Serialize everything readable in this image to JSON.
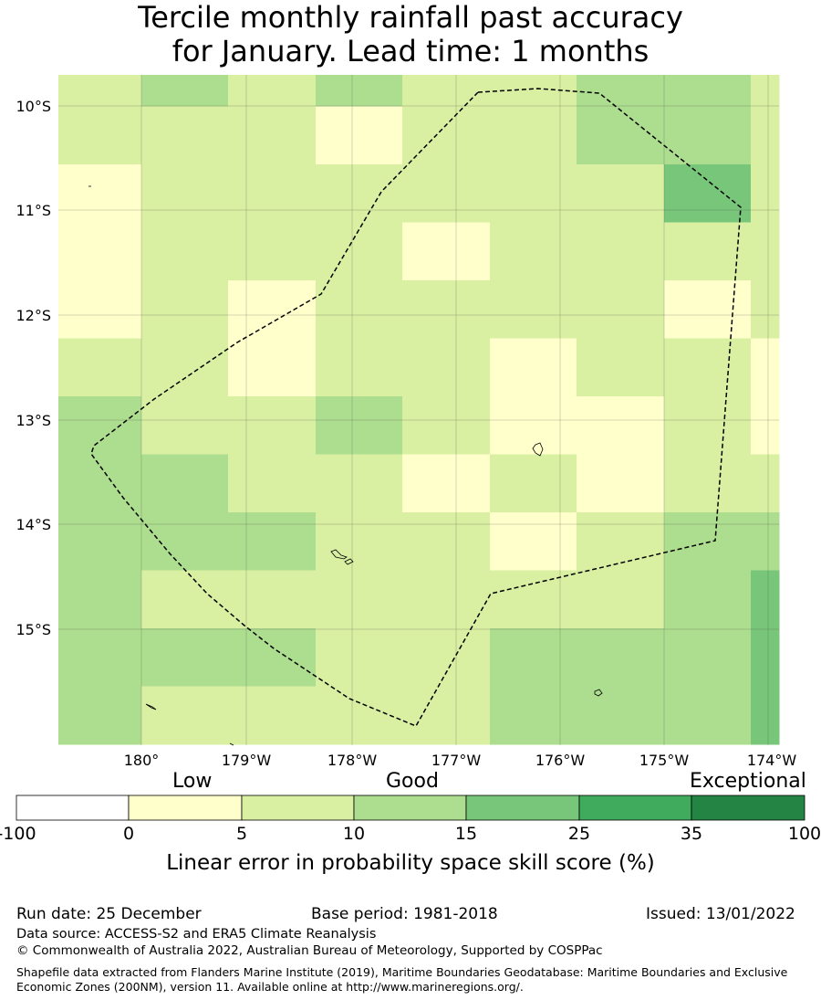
{
  "title": {
    "line1": "Tercile monthly rainfall past accuracy",
    "line2": "for January. Lead time: 1 months"
  },
  "map": {
    "lat_labels": [
      "10°S",
      "11°S",
      "12°S",
      "13°S",
      "14°S",
      "15°S"
    ],
    "lon_labels": [
      "180°",
      "179°W",
      "178°W",
      "177°W",
      "176°W",
      "175°W",
      "174°W"
    ],
    "cell_classes": [
      [
        2,
        3,
        2,
        3,
        2,
        2,
        3,
        3,
        2
      ],
      [
        2,
        2,
        2,
        1,
        2,
        2,
        3,
        3,
        2
      ],
      [
        1,
        2,
        2,
        2,
        2,
        2,
        2,
        4,
        2
      ],
      [
        1,
        2,
        2,
        2,
        1,
        2,
        2,
        2,
        2
      ],
      [
        1,
        2,
        1,
        2,
        2,
        2,
        2,
        1,
        2
      ],
      [
        2,
        2,
        1,
        2,
        2,
        1,
        2,
        2,
        1
      ],
      [
        3,
        2,
        2,
        3,
        2,
        1,
        1,
        2,
        1
      ],
      [
        3,
        3,
        2,
        2,
        1,
        2,
        1,
        2,
        2
      ],
      [
        3,
        3,
        3,
        2,
        2,
        1,
        2,
        3,
        3
      ],
      [
        3,
        2,
        2,
        2,
        2,
        2,
        2,
        3,
        4
      ],
      [
        3,
        3,
        3,
        2,
        2,
        3,
        3,
        3,
        4
      ],
      [
        3,
        2,
        2,
        2,
        2,
        3,
        3,
        3,
        4
      ]
    ]
  },
  "colorbar": {
    "category_labels": [
      "Low",
      "Good",
      "Exceptional"
    ],
    "ticks": [
      "-100",
      "0",
      "5",
      "10",
      "15",
      "25",
      "35",
      "100"
    ],
    "colors": [
      "#ffffff",
      "#ffffcc",
      "#d9f0a3",
      "#addd8e",
      "#78c679",
      "#41ab5d",
      "#238443"
    ],
    "title": "Linear error in probability space skill score (%)"
  },
  "footer": {
    "run_date": "Run date: 25 December",
    "base_period": "Base period: 1981-2018",
    "issued": "Issued: 13/01/2022",
    "data_source": "Data source: ACCESS-S2 and ERA5 Climate Reanalysis",
    "copyright": "© Commonwealth of Australia 2022, Australian Bureau of Meteorology, Supported by COSPPac",
    "shapefile": "Shapefile data extracted from Flanders Marine Institute (2019), Maritime Boundaries Geodatabase: Maritime Boundaries and Exclusive Economic Zones (200NM), version 11. Available online at http://www.marineregions.org/."
  }
}
